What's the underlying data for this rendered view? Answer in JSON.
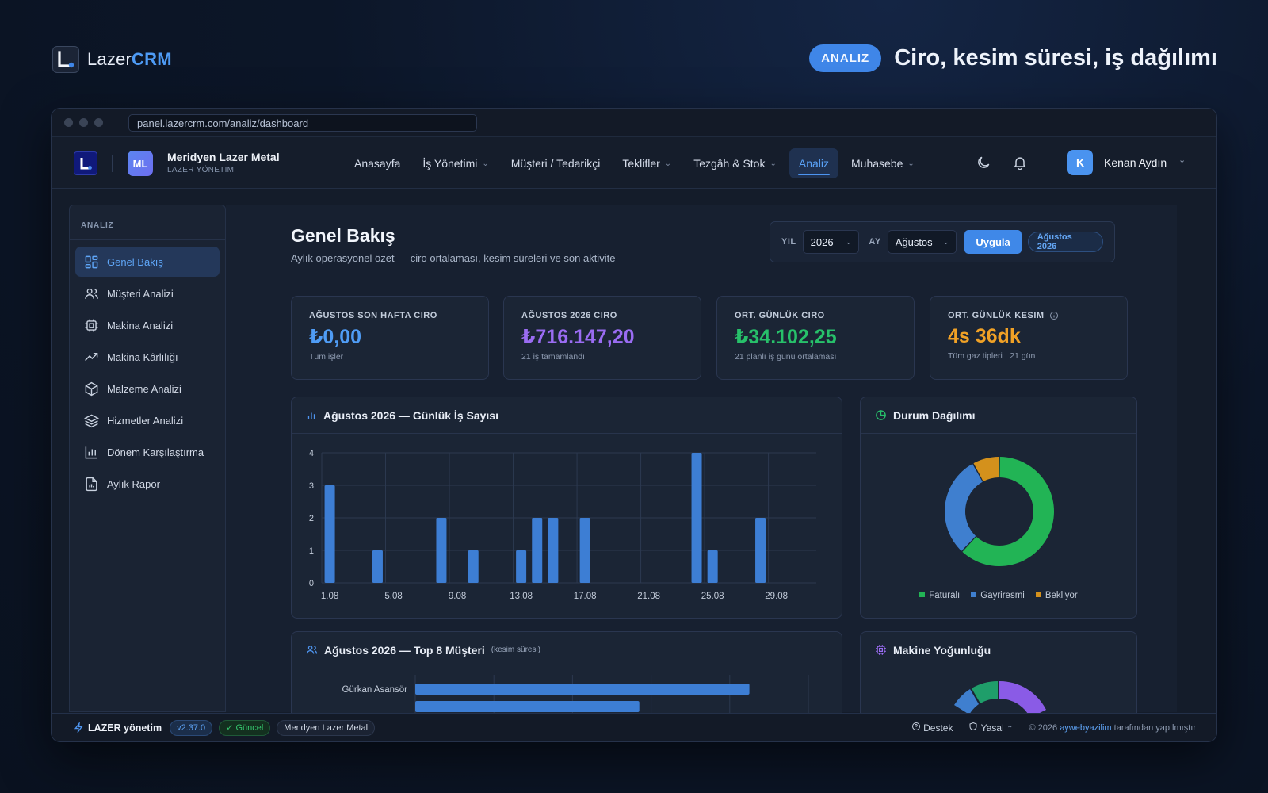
{
  "promo": {
    "brand_plain": "Lazer",
    "brand_bold": "CRM",
    "pill": "ANALIZ",
    "title": "Ciro, kesim süresi, iş dağılımı"
  },
  "browser": {
    "url": "panel.lazercrm.com/analiz/dashboard"
  },
  "header": {
    "org_initials": "ML",
    "org_name": "Meridyen Lazer Metal",
    "org_sub": "LAZER YÖNETIM",
    "nav": [
      {
        "label": "Anasayfa",
        "dropdown": false
      },
      {
        "label": "İş Yönetimi",
        "dropdown": true
      },
      {
        "label": "Müşteri / Tedarikçi",
        "dropdown": false
      },
      {
        "label": "Teklifler",
        "dropdown": true
      },
      {
        "label": "Tezgâh & Stok",
        "dropdown": true
      },
      {
        "label": "Analiz",
        "dropdown": false,
        "active": true
      },
      {
        "label": "Muhasebe",
        "dropdown": true
      }
    ],
    "user_initial": "K",
    "user_name": "Kenan Aydın"
  },
  "sidebar": {
    "title": "ANALIZ",
    "items": [
      {
        "label": "Genel Bakış",
        "icon": "grid-icon",
        "active": true
      },
      {
        "label": "Müşteri Analizi",
        "icon": "users-icon"
      },
      {
        "label": "Makina Analizi",
        "icon": "cpu-icon"
      },
      {
        "label": "Makina Kârlılığı",
        "icon": "trending-up-icon"
      },
      {
        "label": "Malzeme Analizi",
        "icon": "box-icon"
      },
      {
        "label": "Hizmetler Analizi",
        "icon": "layers-icon"
      },
      {
        "label": "Dönem Karşılaştırma",
        "icon": "bar-chart-icon"
      },
      {
        "label": "Aylık Rapor",
        "icon": "file-report-icon"
      }
    ]
  },
  "page": {
    "title": "Genel Bakış",
    "subtitle": "Aylık operasyonel özet — ciro ortalaması, kesim süreleri ve son aktivite"
  },
  "filter": {
    "year_label": "YIL",
    "year_value": "2026",
    "month_label": "AY",
    "month_value": "Ağustos",
    "apply_label": "Uygula",
    "period_badge": "Ağustos 2026"
  },
  "kpis": [
    {
      "label": "AĞUSTOS SON HAFTA CIRO",
      "value": "₺0,00",
      "note": "Tüm işler",
      "color": "#4f9cf5"
    },
    {
      "label": "AĞUSTOS 2026 CIRO",
      "value": "₺716.147,20",
      "note": "21 iş tamamlandı",
      "color": "#9a6cf2"
    },
    {
      "label": "ORT. GÜNLÜK CIRO",
      "value": "₺34.102,25",
      "note": "21 planlı iş günü ortalaması",
      "color": "#27c06a"
    },
    {
      "label": "ORT. GÜNLÜK KESIM",
      "value": "4s 36dk",
      "note": "Tüm gaz tipleri · 21 gün",
      "color": "#f0a126",
      "info": true
    }
  ],
  "cards": {
    "daily_title": "Ağustos 2026 — Günlük İş Sayısı",
    "status_title": "Durum Dağılımı",
    "top_title": "Ağustos 2026 — Top 8 Müşteri",
    "top_sub": "(kesim süresi)",
    "machine_title": "Makine Yoğunluğu"
  },
  "chart_data": [
    {
      "type": "bar",
      "x": [
        "1.08",
        "2.08",
        "3.08",
        "4.08",
        "5.08",
        "6.08",
        "7.08",
        "8.08",
        "9.08",
        "10.08",
        "11.08",
        "12.08",
        "13.08",
        "14.08",
        "15.08",
        "16.08",
        "17.08",
        "18.08",
        "19.08",
        "20.08",
        "21.08",
        "22.08",
        "23.08",
        "24.08",
        "25.08",
        "26.08",
        "27.08",
        "28.08",
        "29.08",
        "30.08",
        "31.08"
      ],
      "xtick_labels": [
        "1.08",
        "5.08",
        "9.08",
        "13.08",
        "17.08",
        "21.08",
        "25.08",
        "29.08"
      ],
      "values": [
        3,
        0,
        0,
        1,
        0,
        0,
        0,
        2,
        0,
        1,
        0,
        0,
        1,
        2,
        2,
        0,
        2,
        0,
        0,
        0,
        0,
        0,
        0,
        4,
        1,
        0,
        0,
        2,
        0,
        0,
        0
      ],
      "ylim": [
        0,
        4
      ],
      "yticks": [
        0,
        1,
        2,
        3,
        4
      ],
      "color": "#3d7ed4",
      "grid": true
    },
    {
      "type": "pie",
      "donut": true,
      "labels": [
        "Faturalı",
        "Gayriresmi",
        "Bekliyor"
      ],
      "values": [
        62,
        30,
        8
      ],
      "colors": [
        "#22b455",
        "#3f7fcf",
        "#d4911c"
      ],
      "legend": "bottom"
    },
    {
      "type": "bar",
      "orientation": "horizontal",
      "categories": [
        "Gürkan Asansör"
      ],
      "values": [
        100
      ],
      "color": "#3d7ed4",
      "note": "partially visible"
    }
  ],
  "footer": {
    "brand": "LAZER yönetim",
    "version": "v2.37.0",
    "status": "Güncel",
    "org": "Meridyen Lazer Metal",
    "support": "Destek",
    "legal": "Yasal",
    "credit_prefix": "© 2026",
    "credit_link": "aywebyazilim",
    "credit_suffix": "tarafından yapılmıştır"
  }
}
